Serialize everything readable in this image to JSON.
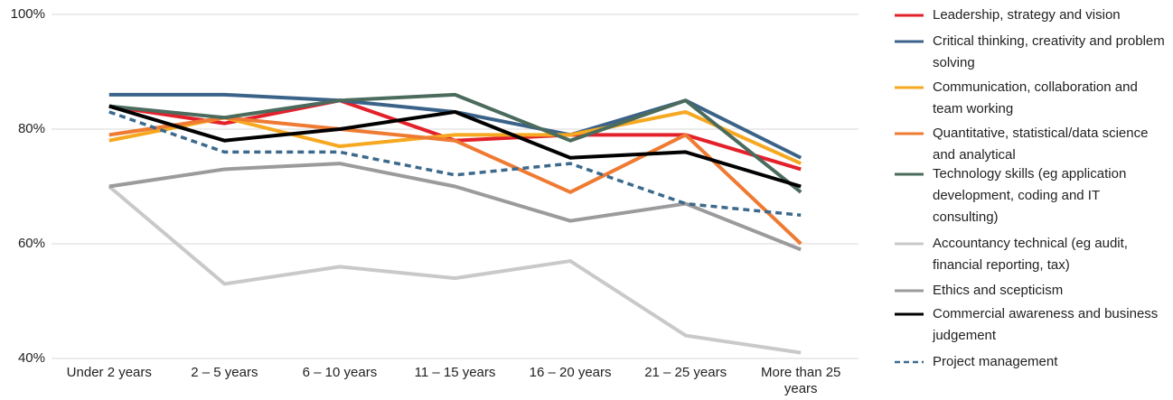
{
  "chart_data": {
    "type": "line",
    "categories": [
      "Under 2 years",
      "2 – 5 years",
      "6 – 10 years",
      "11 – 15 years",
      "16 – 20 years",
      "21 – 25 years",
      "More than 25 years"
    ],
    "ylim": [
      40,
      100
    ],
    "yticks": [
      {
        "value": 40,
        "label": "40%"
      },
      {
        "value": 60,
        "label": "60%"
      },
      {
        "value": 80,
        "label": "80%"
      },
      {
        "value": 100,
        "label": "100%"
      }
    ],
    "grid": true,
    "legend": "right",
    "series": [
      {
        "name": "Leadership, strategy and vision",
        "color": "#e3212b",
        "values": [
          84,
          81,
          85,
          78,
          79,
          79,
          73
        ]
      },
      {
        "name": "Critical thinking, creativity and problem solving",
        "color": "#3b6389",
        "values": [
          86,
          86,
          85,
          83,
          79,
          85,
          75
        ]
      },
      {
        "name": "Communication, collaboration and team working",
        "color": "#f6a821",
        "values": [
          78,
          82,
          77,
          79,
          79,
          83,
          74
        ]
      },
      {
        "name": "Quantitative, statistical/data science and analytical",
        "color": "#ef7a32",
        "values": [
          79,
          82,
          80,
          78,
          69,
          79,
          60
        ]
      },
      {
        "name": "Technology skills (eg application development, coding and IT consulting)",
        "color": "#4b6b5d",
        "values": [
          84,
          82,
          85,
          86,
          78,
          85,
          69
        ]
      },
      {
        "name": "Accountancy technical (eg audit, financial reporting, tax)",
        "color": "#c9c9c9",
        "values": [
          70,
          53,
          56,
          54,
          57,
          44,
          41
        ]
      },
      {
        "name": "Ethics and scepticism",
        "color": "#9b9b9d",
        "values": [
          70,
          73,
          74,
          70,
          64,
          67,
          59
        ]
      },
      {
        "name": "Commercial awareness and business judgement",
        "color": "#000000",
        "values": [
          84,
          78,
          80,
          83,
          75,
          76,
          70
        ]
      },
      {
        "name": "Project management",
        "color": "#3d6a8c",
        "dashed": true,
        "values": [
          83,
          76,
          76,
          72,
          74,
          67,
          65
        ]
      }
    ]
  }
}
